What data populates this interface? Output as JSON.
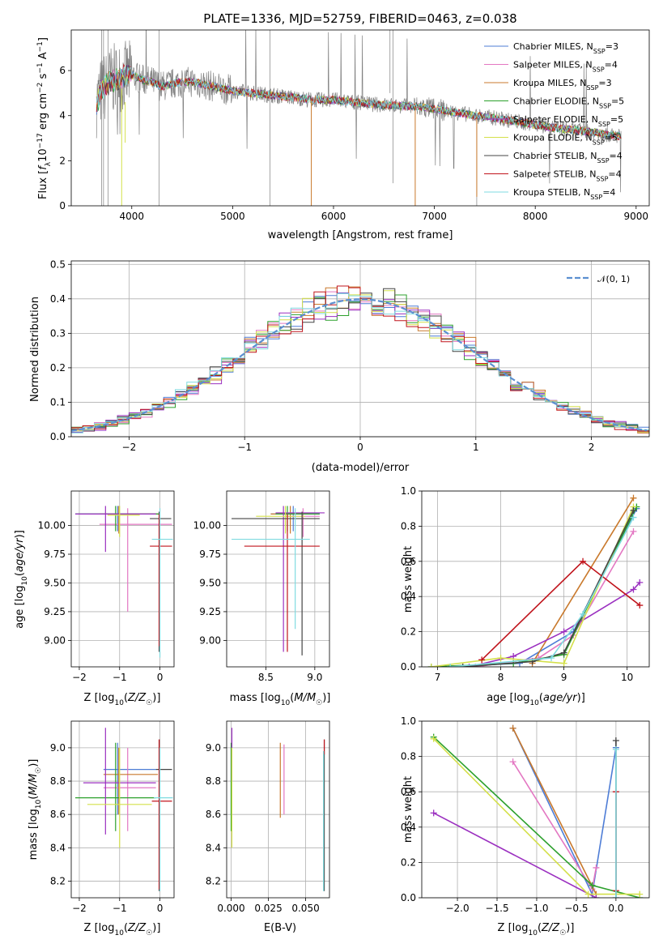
{
  "colors": {
    "chabrier_miles": "#4e7dd6",
    "salpeter_miles": "#e377c2",
    "kroupa_miles": "#c9792c",
    "chabrier_elodie": "#2ca02c",
    "salpeter_elodie": "#9b30c0",
    "kroupa_elodie": "#d4e04a",
    "chabrier_stelib": "#444444",
    "salpeter_stelib": "#c0141c",
    "kroupa_stelib": "#7fdbe0",
    "data": "#808080"
  },
  "chart_data": [
    {
      "id": "spectrum",
      "type": "line",
      "title": "PLATE=1336, MJD=52759, FIBERID=0463, z=0.038",
      "xlabel": "wavelength [Angstrom, rest frame]",
      "ylabel": "Flux [f_λ 10^-17 erg cm^-2 s^-1 A^-1]",
      "xlim": [
        3400,
        9130
      ],
      "ylim": [
        0,
        7.8
      ],
      "xticks": [
        "4000",
        "5000",
        "6000",
        "7000",
        "8000",
        "9000"
      ],
      "yticks": [
        "0",
        "2",
        "4",
        "6"
      ],
      "legend_position": "top-right",
      "legend": [
        {
          "label": "Chabrier MILES, N",
          "sub": "SSP",
          "suffix": "=3",
          "color_key": "chabrier_miles"
        },
        {
          "label": "Salpeter MILES, N",
          "sub": "SSP",
          "suffix": "=4",
          "color_key": "salpeter_miles"
        },
        {
          "label": "Kroupa MILES, N",
          "sub": "SSP",
          "suffix": "=3",
          "color_key": "kroupa_miles"
        },
        {
          "label": "Chabrier ELODIE, N",
          "sub": "SSP",
          "suffix": "=5",
          "color_key": "chabrier_elodie"
        },
        {
          "label": "Salpeter ELODIE, N",
          "sub": "SSP",
          "suffix": "=5",
          "color_key": "salpeter_elodie"
        },
        {
          "label": "Kroupa ELODIE, N",
          "sub": "SSP",
          "suffix": "=5",
          "color_key": "kroupa_elodie"
        },
        {
          "label": "Chabrier STELIB, N",
          "sub": "SSP",
          "suffix": "=4",
          "color_key": "chabrier_stelib"
        },
        {
          "label": "Salpeter STELIB, N",
          "sub": "SSP",
          "suffix": "=4",
          "color_key": "salpeter_stelib"
        },
        {
          "label": "Kroupa STELIB, N",
          "sub": "SSP",
          "suffix": "=4",
          "color_key": "kroupa_stelib"
        }
      ],
      "continuum": {
        "x": [
          3650,
          3700,
          3800,
          3900,
          4000,
          4100,
          4200,
          4300,
          4400,
          4500,
          4600,
          4700,
          4800,
          4900,
          5000,
          5200,
          5400,
          5600,
          5800,
          6000,
          6200,
          6400,
          6600,
          6800,
          7000,
          7200,
          7400,
          7600,
          7800,
          8000,
          8200,
          8400,
          8600,
          8800
        ],
        "y": [
          4.6,
          5.1,
          5.6,
          5.7,
          5.8,
          5.6,
          5.5,
          5.3,
          5.4,
          5.5,
          5.5,
          5.4,
          5.3,
          5.2,
          5.1,
          5.0,
          4.9,
          4.8,
          4.7,
          4.7,
          4.6,
          4.5,
          4.45,
          4.4,
          4.3,
          4.15,
          4.0,
          3.9,
          3.75,
          3.6,
          3.45,
          3.35,
          3.25,
          3.1
        ]
      }
    },
    {
      "id": "residuals",
      "type": "histogram",
      "xlabel": "(data-model)/error",
      "ylabel": "Normed distribution",
      "xlim": [
        -2.5,
        2.5
      ],
      "ylim": [
        0,
        0.51
      ],
      "xticks": [
        "−2",
        "−1",
        "0",
        "1",
        "2"
      ],
      "yticks": [
        "0.0",
        "0.1",
        "0.2",
        "0.3",
        "0.4",
        "0.5"
      ],
      "grid": true,
      "legend_position": "top-right",
      "legend_label": "𝒩(0, 1)",
      "bin_width": 0.1
    },
    {
      "id": "age_vs_Z",
      "type": "errorbar",
      "xlabel": "Z [log10(Z/Z☉)]",
      "ylabel": "age  [log10(age/yr)]",
      "xlim": [
        -2.2,
        0.35
      ],
      "ylim": [
        8.77,
        10.3
      ],
      "xticks": [
        "−2",
        "−1",
        "0"
      ],
      "yticks": [
        "9.00",
        "9.25",
        "9.50",
        "9.75",
        "10.00"
      ]
    },
    {
      "id": "age_vs_mass",
      "type": "errorbar",
      "xlabel": "mass [log10(M/M☉)]",
      "xlim": [
        8.1,
        9.15
      ],
      "ylim": [
        8.77,
        10.3
      ],
      "xticks": [
        "8.5",
        "9.0"
      ],
      "yticks": [
        "9.00",
        "9.25",
        "9.50",
        "9.75",
        "10.00"
      ]
    },
    {
      "id": "weight_vs_age",
      "type": "line",
      "xlabel": "age  [log10(age/yr)]",
      "ylabel": "mass weight",
      "xlim": [
        6.75,
        10.35
      ],
      "ylim": [
        0,
        1.0
      ],
      "xticks": [
        "7",
        "8",
        "9",
        "10"
      ],
      "yticks": [
        "0.0",
        "0.2",
        "0.4",
        "0.6",
        "0.8",
        "1.0"
      ],
      "grid": true,
      "series": [
        {
          "color_key": "chabrier_miles",
          "x": [
            6.9,
            8.3,
            9.15,
            10.15
          ],
          "y": [
            0.0,
            0.02,
            0.2,
            0.9
          ]
        },
        {
          "color_key": "salpeter_miles",
          "x": [
            7.6,
            8.6,
            9.15,
            10.1
          ],
          "y": [
            0.0,
            0.05,
            0.18,
            0.77
          ]
        },
        {
          "color_key": "kroupa_miles",
          "x": [
            8.5,
            10.1
          ],
          "y": [
            0.02,
            0.96
          ]
        },
        {
          "color_key": "chabrier_elodie",
          "x": [
            6.9,
            8.2,
            9.0,
            10.15
          ],
          "y": [
            0.0,
            0.02,
            0.07,
            0.91
          ]
        },
        {
          "color_key": "salpeter_elodie",
          "x": [
            7.5,
            8.2,
            9.0,
            10.1,
            10.2
          ],
          "y": [
            0.0,
            0.06,
            0.2,
            0.44,
            0.48
          ]
        },
        {
          "color_key": "kroupa_elodie",
          "x": [
            6.9,
            8.0,
            9.0,
            10.1
          ],
          "y": [
            0.0,
            0.05,
            0.02,
            0.91
          ]
        },
        {
          "color_key": "chabrier_stelib",
          "x": [
            7.4,
            8.5,
            9.0,
            10.1
          ],
          "y": [
            0.0,
            0.03,
            0.08,
            0.89
          ]
        },
        {
          "color_key": "salpeter_stelib",
          "x": [
            7.7,
            9.3,
            10.2
          ],
          "y": [
            0.04,
            0.6,
            0.35
          ]
        },
        {
          "color_key": "kroupa_stelib",
          "x": [
            7.2,
            8.8,
            9.3,
            10.1
          ],
          "y": [
            0.0,
            0.05,
            0.3,
            0.85
          ]
        }
      ]
    },
    {
      "id": "mass_vs_Z",
      "type": "errorbar",
      "xlabel": "Z [log10(Z/Z☉)]",
      "ylabel": "mass [log10(M/M☉)]",
      "xlim": [
        -2.2,
        0.35
      ],
      "ylim": [
        8.1,
        9.16
      ],
      "xticks": [
        "−2",
        "−1",
        "0"
      ],
      "yticks": [
        "8.2",
        "8.4",
        "8.6",
        "8.8",
        "9.0"
      ]
    },
    {
      "id": "mass_vs_ebv",
      "type": "errorbar",
      "xlabel": "E(B-V)",
      "xlim": [
        -0.003,
        0.066
      ],
      "ylim": [
        8.1,
        9.16
      ],
      "xticks": [
        "0.000",
        "0.025",
        "0.050"
      ],
      "yticks": [
        "8.2",
        "8.4",
        "8.6",
        "8.8",
        "9.0"
      ],
      "grid": true
    },
    {
      "id": "weight_vs_Z",
      "type": "line",
      "xlabel": "Z [log10(Z/Z☉)]",
      "ylabel": "mass weight",
      "xlim": [
        -2.45,
        0.42
      ],
      "ylim": [
        0,
        1.0
      ],
      "xticks": [
        "−2.0",
        "−1.5",
        "−1.0",
        "−0.5",
        "0.0"
      ],
      "yticks": [
        "0.0",
        "0.2",
        "0.4",
        "0.6",
        "0.8",
        "1.0"
      ],
      "grid": true,
      "series": [
        {
          "color_key": "chabrier_miles",
          "x": [
            -1.3,
            -0.3,
            0.0
          ],
          "y": [
            0.96,
            0.02,
            0.85
          ]
        },
        {
          "color_key": "salpeter_miles",
          "x": [
            -1.3,
            -0.3,
            -0.25
          ],
          "y": [
            0.77,
            0.05,
            0.17
          ]
        },
        {
          "color_key": "kroupa_miles",
          "x": [
            -1.3,
            -0.25
          ],
          "y": [
            0.96,
            0.02
          ]
        },
        {
          "color_key": "chabrier_elodie",
          "x": [
            -2.3,
            -0.3,
            0.3
          ],
          "y": [
            0.91,
            0.07,
            0.0
          ]
        },
        {
          "color_key": "salpeter_elodie",
          "x": [
            -2.3,
            -0.25
          ],
          "y": [
            0.48,
            0.0
          ]
        },
        {
          "color_key": "kroupa_elodie",
          "x": [
            -2.3,
            -0.35,
            0.3
          ],
          "y": [
            0.9,
            0.02,
            0.02
          ]
        },
        {
          "color_key": "chabrier_stelib",
          "x": [
            0.0,
            0.0
          ],
          "y": [
            0.0,
            0.89
          ]
        },
        {
          "color_key": "salpeter_stelib",
          "x": [
            0.0,
            0.0
          ],
          "y": [
            0.04,
            0.6
          ]
        },
        {
          "color_key": "kroupa_stelib",
          "x": [
            0.0,
            0.0
          ],
          "y": [
            0.0,
            0.84
          ]
        }
      ]
    }
  ]
}
